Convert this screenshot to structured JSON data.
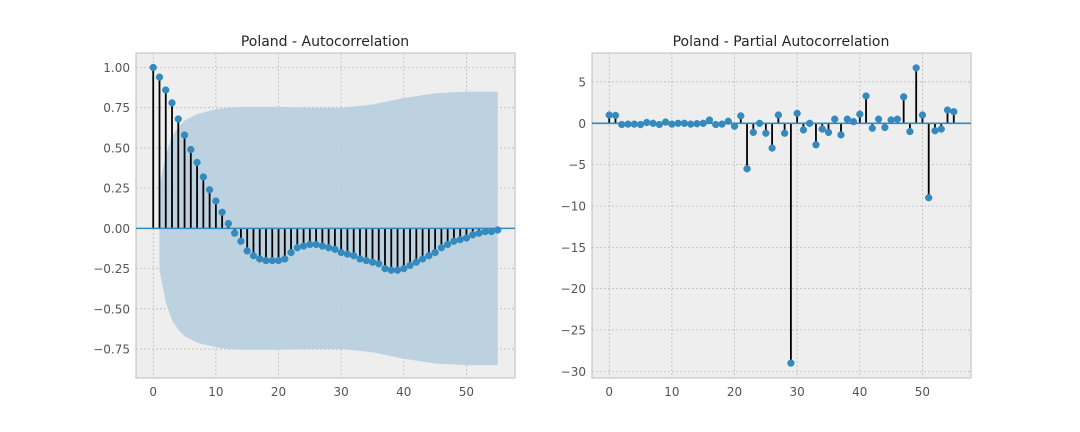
{
  "chart_data": [
    {
      "type": "stem",
      "title": "Poland - Autocorrelation",
      "xlabel": "",
      "ylabel": "",
      "xlim": [
        -2.75,
        57.75
      ],
      "ylim": [
        -0.93,
        1.09
      ],
      "xticks": [
        0,
        10,
        20,
        30,
        40,
        50
      ],
      "yticks": [
        -0.75,
        -0.5,
        -0.25,
        0.0,
        0.25,
        0.5,
        0.75,
        1.0
      ],
      "ytick_labels": [
        "−0.75",
        "−0.50",
        "−0.25",
        "0.00",
        "0.25",
        "0.50",
        "0.75",
        "1.00"
      ],
      "grid": true,
      "confidence_band": {
        "x": [
          1,
          2,
          3,
          4,
          5,
          6,
          7,
          8,
          9,
          10,
          11,
          12,
          14,
          16,
          20,
          25,
          30,
          35,
          40,
          45,
          50,
          55
        ],
        "upper": [
          0.26,
          0.46,
          0.57,
          0.63,
          0.67,
          0.69,
          0.71,
          0.72,
          0.73,
          0.74,
          0.745,
          0.75,
          0.755,
          0.755,
          0.755,
          0.75,
          0.75,
          0.77,
          0.81,
          0.84,
          0.85,
          0.85
        ],
        "lower": [
          -0.26,
          -0.46,
          -0.57,
          -0.63,
          -0.67,
          -0.69,
          -0.71,
          -0.72,
          -0.73,
          -0.74,
          -0.745,
          -0.75,
          -0.755,
          -0.755,
          -0.755,
          -0.75,
          -0.75,
          -0.77,
          -0.81,
          -0.84,
          -0.85,
          -0.85
        ]
      },
      "x": [
        0,
        1,
        2,
        3,
        4,
        5,
        6,
        7,
        8,
        9,
        10,
        11,
        12,
        13,
        14,
        15,
        16,
        17,
        18,
        19,
        20,
        21,
        22,
        23,
        24,
        25,
        26,
        27,
        28,
        29,
        30,
        31,
        32,
        33,
        34,
        35,
        36,
        37,
        38,
        39,
        40,
        41,
        42,
        43,
        44,
        45,
        46,
        47,
        48,
        49,
        50,
        51,
        52,
        53,
        54,
        55
      ],
      "values": [
        1.0,
        0.94,
        0.86,
        0.78,
        0.68,
        0.58,
        0.49,
        0.41,
        0.32,
        0.24,
        0.17,
        0.1,
        0.03,
        -0.03,
        -0.08,
        -0.14,
        -0.17,
        -0.19,
        -0.2,
        -0.2,
        -0.2,
        -0.19,
        -0.15,
        -0.12,
        -0.11,
        -0.1,
        -0.1,
        -0.11,
        -0.12,
        -0.13,
        -0.15,
        -0.16,
        -0.17,
        -0.19,
        -0.2,
        -0.21,
        -0.22,
        -0.25,
        -0.26,
        -0.26,
        -0.25,
        -0.23,
        -0.21,
        -0.19,
        -0.17,
        -0.15,
        -0.12,
        -0.1,
        -0.08,
        -0.07,
        -0.06,
        -0.04,
        -0.03,
        -0.02,
        -0.02,
        -0.01
      ]
    },
    {
      "type": "stem",
      "title": "Poland - Partial Autocorrelation",
      "xlabel": "",
      "ylabel": "",
      "xlim": [
        -2.75,
        57.75
      ],
      "ylim": [
        -30.8,
        8.5
      ],
      "xticks": [
        0,
        10,
        20,
        30,
        40,
        50
      ],
      "yticks": [
        -30,
        -25,
        -20,
        -15,
        -10,
        -5,
        0,
        5
      ],
      "ytick_labels": [
        "−30",
        "−25",
        "−20",
        "−15",
        "−10",
        "−5",
        "0",
        "5"
      ],
      "grid": true,
      "x": [
        0,
        1,
        2,
        3,
        4,
        5,
        6,
        7,
        8,
        9,
        10,
        11,
        12,
        13,
        14,
        15,
        16,
        17,
        18,
        19,
        20,
        21,
        22,
        23,
        24,
        25,
        26,
        27,
        28,
        29,
        30,
        31,
        32,
        33,
        34,
        35,
        36,
        37,
        38,
        39,
        40,
        41,
        42,
        43,
        44,
        45,
        46,
        47,
        48,
        49,
        50,
        51,
        52,
        53,
        54,
        55
      ],
      "values": [
        1.0,
        0.95,
        -0.15,
        -0.1,
        -0.1,
        -0.15,
        0.1,
        0.0,
        -0.15,
        0.15,
        -0.1,
        0.0,
        0.0,
        -0.1,
        -0.05,
        0.0,
        0.4,
        -0.15,
        -0.1,
        0.25,
        -0.35,
        0.9,
        -5.5,
        -1.1,
        0.0,
        -1.2,
        -3.0,
        1.0,
        -1.2,
        -29.0,
        1.2,
        -0.8,
        0.0,
        -2.6,
        -0.7,
        -1.1,
        0.5,
        -1.4,
        0.5,
        0.2,
        1.1,
        3.3,
        -0.6,
        0.5,
        -0.5,
        0.4,
        0.5,
        3.2,
        -1.0,
        6.7,
        1.0,
        -9.0,
        -0.9,
        -0.7,
        1.6,
        1.4
      ]
    }
  ],
  "colors": {
    "axes_bg": "#eeeeee",
    "grid": "#bcbcbc",
    "marker": "#348abd",
    "stem": "#000000",
    "zero_line": "#348abd",
    "band": "#b9d0df",
    "text": "#262626",
    "tick": "#555555"
  }
}
